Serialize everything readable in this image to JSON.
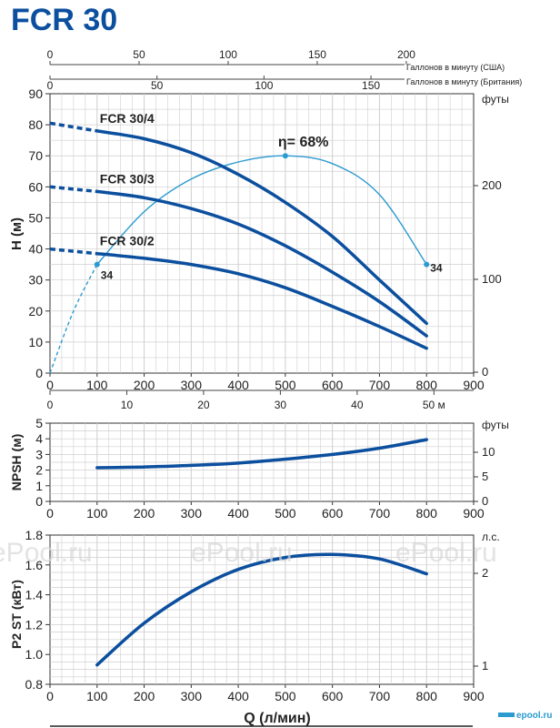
{
  "header": {
    "title": "FCR 30"
  },
  "top_axes": {
    "usgpm_label": "Галлонов в минуту (США)",
    "usgpm_ticks": [
      "0",
      "50",
      "100",
      "150",
      "200"
    ],
    "ukgpm_label": "Галлонов в минуту (Британия)",
    "ukgpm_ticks": [
      "0",
      "50",
      "100",
      "150"
    ]
  },
  "x_axis": {
    "label": "Q (л/мин)",
    "ticks": [
      "0",
      "100",
      "200",
      "300",
      "400",
      "500",
      "600",
      "700",
      "800",
      "900"
    ],
    "meter_ticks": [
      "0",
      "10",
      "20",
      "30",
      "40",
      "50 м"
    ]
  },
  "watermarks": [
    "ePool.ru",
    "ePool.ru",
    "ePool.ru"
  ],
  "logo": "epool.ru",
  "colors": {
    "curve": "#0b4f9e",
    "efficiency": "#2a9ad0",
    "grid": "#cfcfcf",
    "title": "#0b4f9e"
  },
  "chart_data": [
    {
      "type": "line",
      "name": "head",
      "ylabel": "H (м)",
      "ylabel_right": "футы",
      "xlim": [
        0,
        900
      ],
      "ylim": [
        0,
        90
      ],
      "y_ticks": [
        "0",
        "10",
        "20",
        "30",
        "40",
        "50",
        "60",
        "70",
        "80",
        "90"
      ],
      "y_right_ticks": [
        "0",
        "100",
        "200"
      ],
      "series": [
        {
          "name": "FCR 30/4",
          "x": [
            100,
            200,
            300,
            400,
            500,
            600,
            700,
            800
          ],
          "y": [
            78,
            75.5,
            71,
            64,
            55,
            44,
            30,
            16
          ],
          "extrapolated": {
            "x": [
              0,
              100
            ],
            "y": [
              80.5,
              78
            ]
          }
        },
        {
          "name": "FCR 30/3",
          "x": [
            100,
            200,
            300,
            400,
            500,
            600,
            700,
            800
          ],
          "y": [
            58.5,
            56.5,
            53,
            48,
            41,
            32.5,
            23,
            12
          ],
          "extrapolated": {
            "x": [
              0,
              100
            ],
            "y": [
              60,
              58.5
            ]
          }
        },
        {
          "name": "FCR 30/2",
          "x": [
            100,
            200,
            300,
            400,
            500,
            600,
            700,
            800
          ],
          "y": [
            38.5,
            37,
            35,
            32,
            27.5,
            21.5,
            15,
            8
          ],
          "extrapolated": {
            "x": [
              0,
              100
            ],
            "y": [
              40,
              38.5
            ]
          }
        }
      ],
      "efficiency": {
        "label": "η= 68%",
        "point_label_left": "34",
        "point_label_right": "34",
        "x": [
          100,
          200,
          300,
          400,
          500,
          600,
          700,
          800
        ],
        "y": [
          35,
          52,
          62.5,
          68,
          70,
          67.5,
          57.5,
          35
        ],
        "extrapolated": {
          "x": [
            0,
            50,
            100
          ],
          "y": [
            0,
            20,
            35
          ]
        },
        "max_point": [
          500,
          70
        ]
      }
    },
    {
      "type": "line",
      "name": "npsh",
      "ylabel": "NPSH (м)",
      "ylabel_right": "футы",
      "xlim": [
        0,
        900
      ],
      "ylim": [
        0,
        5
      ],
      "y_ticks": [
        "0",
        "1",
        "2",
        "3",
        "4",
        "5"
      ],
      "y_right_ticks": [
        "0",
        "5",
        "10"
      ],
      "series": [
        {
          "name": "NPSH",
          "x": [
            100,
            200,
            300,
            400,
            500,
            600,
            700,
            800
          ],
          "y": [
            2.15,
            2.2,
            2.3,
            2.45,
            2.7,
            3.0,
            3.4,
            3.95
          ]
        }
      ]
    },
    {
      "type": "line",
      "name": "power",
      "ylabel": "P2 ST (кВт)",
      "ylabel_right": "л.с.",
      "xlim": [
        0,
        900
      ],
      "ylim": [
        0.8,
        1.8
      ],
      "y_ticks": [
        "0.8",
        "1.0",
        "1.2",
        "1.4",
        "1.6",
        "1.8"
      ],
      "y_right_ticks": [
        "1",
        "2"
      ],
      "series": [
        {
          "name": "P2",
          "x": [
            100,
            200,
            300,
            400,
            500,
            600,
            700,
            800
          ],
          "y": [
            0.93,
            1.21,
            1.42,
            1.57,
            1.65,
            1.67,
            1.64,
            1.54
          ]
        }
      ]
    }
  ]
}
